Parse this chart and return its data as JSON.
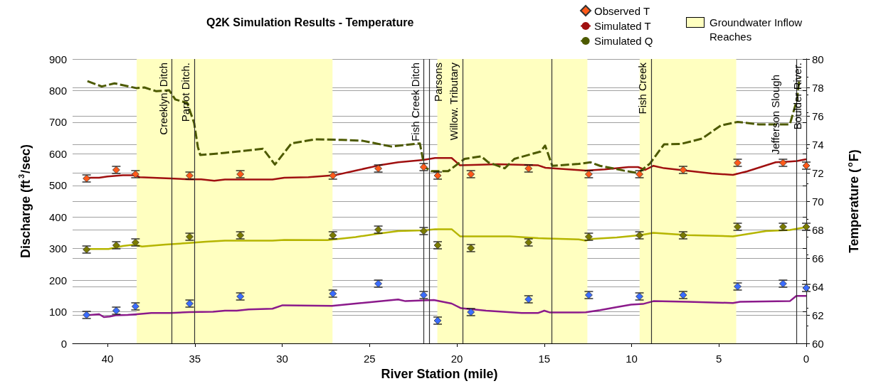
{
  "chart_data": {
    "type": "line",
    "title": "Q2K Simulation Results - Temperature",
    "xlabel": "River Station (mile)",
    "ylabel": "Discharge (ft$^{3}$/sec)",
    "y2label": "Temperature ($^{o}$F)",
    "xlim": [
      42,
      0
    ],
    "xticks": [
      40,
      35,
      30,
      25,
      20,
      15,
      10,
      5,
      0
    ],
    "ylim": [
      0,
      900
    ],
    "yticks": [
      0,
      100,
      200,
      300,
      400,
      500,
      600,
      700,
      800,
      900
    ],
    "y2lim": [
      60,
      80
    ],
    "y2ticks": [
      60,
      62,
      64,
      66,
      68,
      70,
      72,
      74,
      76,
      78,
      80
    ],
    "grid": "y",
    "legend": "top right",
    "series": [
      {
        "type": "scatter",
        "name": "Observed T",
        "color": "#ff5a1a",
        "marker": "diamond",
        "axis": "y2",
        "x": [
          41.2,
          39.5,
          38.4,
          35.3,
          32.4,
          27.1,
          24.5,
          21.9,
          21.1,
          19.2,
          15.9,
          12.45,
          9.55,
          7.05,
          3.93,
          1.33,
          0
        ],
        "values": [
          71.6,
          72.2,
          71.9,
          71.8,
          71.9,
          71.8,
          72.3,
          72.4,
          71.8,
          71.9,
          72.3,
          71.9,
          71.9,
          72.2,
          72.7,
          72.7,
          72.5
        ],
        "errors": [
          0.25,
          0.25,
          0.25,
          0.25,
          0.25,
          0.25,
          0.25,
          0.25,
          0.25,
          0.25,
          0.25,
          0.25,
          0.25,
          0.25,
          0.25,
          0.25,
          0.25
        ]
      },
      {
        "type": "scatter",
        "color": "#7a7a00",
        "marker": "diamond",
        "axis": "y2",
        "x": [
          41.2,
          39.5,
          38.4,
          35.3,
          32.4,
          27.1,
          24.5,
          21.9,
          21.1,
          19.2,
          15.9,
          12.45,
          9.55,
          7.05,
          3.93,
          1.33,
          0
        ],
        "values": [
          66.6,
          66.9,
          67.1,
          67.5,
          67.6,
          67.6,
          68.0,
          67.9,
          66.9,
          66.7,
          67.1,
          67.5,
          67.6,
          67.6,
          68.2,
          68.2,
          68.2
        ],
        "errors": [
          0.25,
          0.25,
          0.25,
          0.25,
          0.25,
          0.25,
          0.25,
          0.25,
          0.25,
          0.25,
          0.25,
          0.25,
          0.25,
          0.25,
          0.25,
          0.25,
          0.25
        ]
      },
      {
        "type": "scatter",
        "color": "#3a6cff",
        "marker": "diamond",
        "axis": "y2",
        "x": [
          41.2,
          39.5,
          38.4,
          35.3,
          32.4,
          27.1,
          24.5,
          21.9,
          21.1,
          19.2,
          15.9,
          12.45,
          9.55,
          7.05,
          3.93,
          1.33,
          0
        ],
        "values": [
          62.0,
          62.3,
          62.6,
          62.8,
          63.3,
          63.5,
          64.2,
          63.4,
          61.6,
          62.2,
          63.1,
          63.4,
          63.3,
          63.4,
          64.0,
          64.2,
          63.9
        ],
        "errors": [
          0.25,
          0.25,
          0.25,
          0.25,
          0.25,
          0.25,
          0.25,
          0.25,
          0.25,
          0.25,
          0.25,
          0.25,
          0.25,
          0.25,
          0.25,
          0.25,
          0.25
        ]
      },
      {
        "name": "Simulated T",
        "color": "#a01010",
        "marker": "none",
        "line_style": "solid",
        "axis": "y2",
        "x": [
          41.2,
          40.48,
          40.0,
          39.12,
          38.58,
          38.33,
          38.17,
          36.4,
          35.32,
          34.64,
          33.89,
          33.28,
          30.56,
          29.88,
          28.5,
          27.42,
          27.01,
          25.8,
          24.45,
          23.36,
          21.93,
          21.25,
          20.3,
          19.82,
          17.65,
          15.34,
          14.93,
          13.03,
          12.63,
          11.54,
          10.18,
          9.63,
          9.22,
          8.75,
          8.14,
          5.42,
          4.2,
          3.38,
          1.75,
          0.94,
          0.53,
          0
        ],
        "values": [
          71.65,
          71.65,
          71.74,
          71.82,
          71.82,
          71.79,
          71.69,
          71.6,
          71.54,
          71.54,
          71.44,
          71.52,
          71.52,
          71.65,
          71.69,
          71.79,
          71.82,
          72.15,
          72.52,
          72.74,
          72.9,
          73.04,
          73.04,
          72.52,
          72.6,
          72.52,
          72.35,
          72.19,
          72.15,
          72.24,
          72.4,
          72.4,
          72.2,
          72.49,
          72.32,
          71.95,
          71.85,
          72.1,
          72.74,
          72.79,
          72.82,
          72.95
        ]
      },
      {
        "color": "#b5b500",
        "marker": "none",
        "line_style": "solid",
        "axis": "y2",
        "x": [
          41.2,
          39.94,
          39.12,
          38.44,
          38.03,
          36.68,
          35.32,
          34.37,
          33.28,
          30.56,
          29.88,
          27.42,
          25.8,
          24.45,
          23.36,
          21.93,
          21.25,
          20.3,
          19.82,
          16.97,
          15.34,
          13.03,
          12.62,
          12.21,
          10.85,
          9.49,
          8.75,
          6.78,
          4.2,
          2.3,
          0.94,
          0
        ],
        "values": [
          66.64,
          66.64,
          66.85,
          66.95,
          66.81,
          66.95,
          67.06,
          67.15,
          67.23,
          67.23,
          67.28,
          67.26,
          67.48,
          67.73,
          67.9,
          67.95,
          68.03,
          68.03,
          67.53,
          67.53,
          67.4,
          67.31,
          67.23,
          67.35,
          67.45,
          67.61,
          67.78,
          67.61,
          67.53,
          67.9,
          67.98,
          68.18
        ]
      },
      {
        "color": "#8b1a8b",
        "marker": "none",
        "line_style": "solid",
        "axis": "y2",
        "x": [
          41.2,
          40.48,
          40.21,
          39.87,
          39.53,
          38.85,
          38.31,
          37.49,
          36.4,
          35.32,
          33.96,
          33.28,
          32.6,
          31.92,
          30.56,
          30.01,
          29.88,
          27.15,
          25.8,
          23.36,
          22.95,
          21.32,
          20.3,
          19.76,
          18.33,
          16.29,
          15.34,
          15.0,
          14.66,
          13.03,
          12.62,
          11.8,
          10.85,
          10.03,
          9.35,
          8.75,
          6.78,
          4.2,
          3.79,
          0.94,
          0.57,
          0
        ],
        "values": [
          61.97,
          62.05,
          61.85,
          61.89,
          61.97,
          62.0,
          62.05,
          62.14,
          62.14,
          62.2,
          62.22,
          62.3,
          62.3,
          62.39,
          62.44,
          62.67,
          62.67,
          62.64,
          62.8,
          63.09,
          62.97,
          63.05,
          62.8,
          62.47,
          62.3,
          62.14,
          62.14,
          62.3,
          62.17,
          62.17,
          62.19,
          62.34,
          62.55,
          62.72,
          62.77,
          62.97,
          62.92,
          62.84,
          62.92,
          62.97,
          63.34,
          63.34
        ]
      },
      {
        "name": "Simulated Q",
        "color": "#4d5a00",
        "marker": "none",
        "line_style": "dashed",
        "x": [
          41.15,
          40.33,
          39.6,
          38.36,
          37.89,
          37.21,
          36.47,
          36.12,
          35.44,
          35.04,
          34.83,
          34.69,
          33.28,
          32.6,
          31.1,
          30.42,
          29.47,
          28.11,
          26.6,
          25.38,
          23.75,
          22.12,
          21.86,
          21.45,
          20.5,
          19.56,
          18.61,
          18.2,
          17.26,
          16.71,
          15.22,
          14.95,
          14.54,
          13.03,
          12.35,
          11.81,
          10.45,
          9.63,
          8.95,
          8.14,
          7.19,
          5.97,
          4.88,
          3.93,
          2.71,
          0.94,
          0.53,
          0.39
        ],
        "values": [
          830,
          813,
          823,
          808,
          810,
          798,
          801,
          772,
          761,
          697,
          622,
          596,
          603,
          607,
          616,
          566,
          633,
          646,
          644,
          641,
          623,
          633,
          558,
          545,
          545,
          584,
          592,
          573,
          554,
          584,
          607,
          626,
          562,
          568,
          573,
          562,
          547,
          539,
          569,
          630,
          631,
          648,
          690,
          701,
          693,
          693,
          772,
          840
        ]
      }
    ],
    "bands": [
      {
        "axis": "x",
        "from": 38.33,
        "to": 27.12,
        "label": "Groundwater Inflow Reaches",
        "color": "#ffffc0"
      },
      {
        "axis": "x",
        "from": 21.12,
        "to": 12.53,
        "color": "#ffffc0"
      },
      {
        "axis": "x",
        "from": 9.54,
        "to": 4.01,
        "color": "#ffffc0"
      }
    ],
    "ref_lines": [
      {
        "axis": "x",
        "value": 36.31,
        "label": "Creeklyn. Ditch"
      },
      {
        "axis": "x",
        "value": 35.02,
        "label": "Parrot Ditch."
      },
      {
        "axis": "x",
        "value": 21.89,
        "label": "Fish Creek Ditch"
      },
      {
        "axis": "x",
        "value": 21.59,
        "label": "Parsons"
      },
      {
        "axis": "x",
        "value": 19.66,
        "label": "Willow. Tributary"
      },
      {
        "axis": "x",
        "value": 14.58
      },
      {
        "axis": "x",
        "value": 8.89,
        "label": "Fish Creek"
      },
      {
        "axis": "x",
        "value": 0.57,
        "label": "Jefferson Slough"
      },
      {
        "axis": "x",
        "value": 0,
        "label": "Boulder River."
      }
    ]
  }
}
